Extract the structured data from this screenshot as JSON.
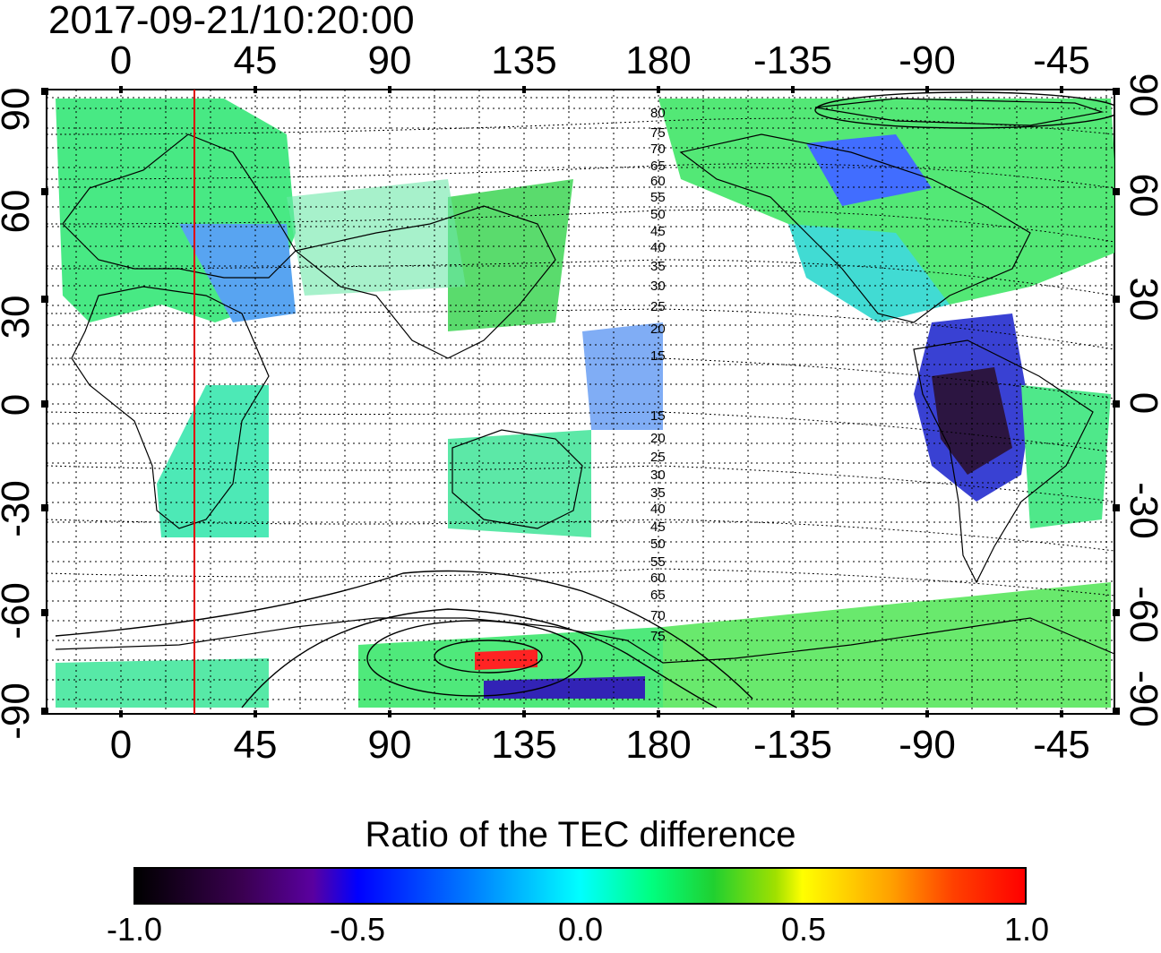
{
  "timestamp": "2017-09-21/10:20:00",
  "map": {
    "x_ticks_top": [
      "0",
      "45",
      "90",
      "135",
      "180",
      "-135",
      "-90",
      "-45"
    ],
    "x_ticks_bottom": [
      "0",
      "45",
      "90",
      "135",
      "180",
      "-135",
      "-90",
      "-45"
    ],
    "y_ticks_left": [
      "90",
      "60",
      "30",
      "0",
      "-30",
      "-60",
      "-90"
    ],
    "y_ticks_right": [
      "90",
      "60",
      "30",
      "0",
      "-30",
      "-60",
      "-90"
    ],
    "contour_labels_north": [
      "80",
      "75",
      "70",
      "65",
      "60",
      "55",
      "50",
      "45",
      "40",
      "35",
      "30",
      "25",
      "20",
      "15"
    ],
    "contour_labels_south": [
      "15",
      "20",
      "25",
      "30",
      "35",
      "40",
      "45",
      "50",
      "55",
      "60",
      "65",
      "70",
      "75"
    ],
    "terminator_longitude": 25
  },
  "colorbar": {
    "title": "Ratio of the TEC difference",
    "ticks": [
      "-1.0",
      "-0.5",
      "0.0",
      "0.5",
      "1.0"
    ],
    "min": -1.0,
    "max": 1.0
  }
}
